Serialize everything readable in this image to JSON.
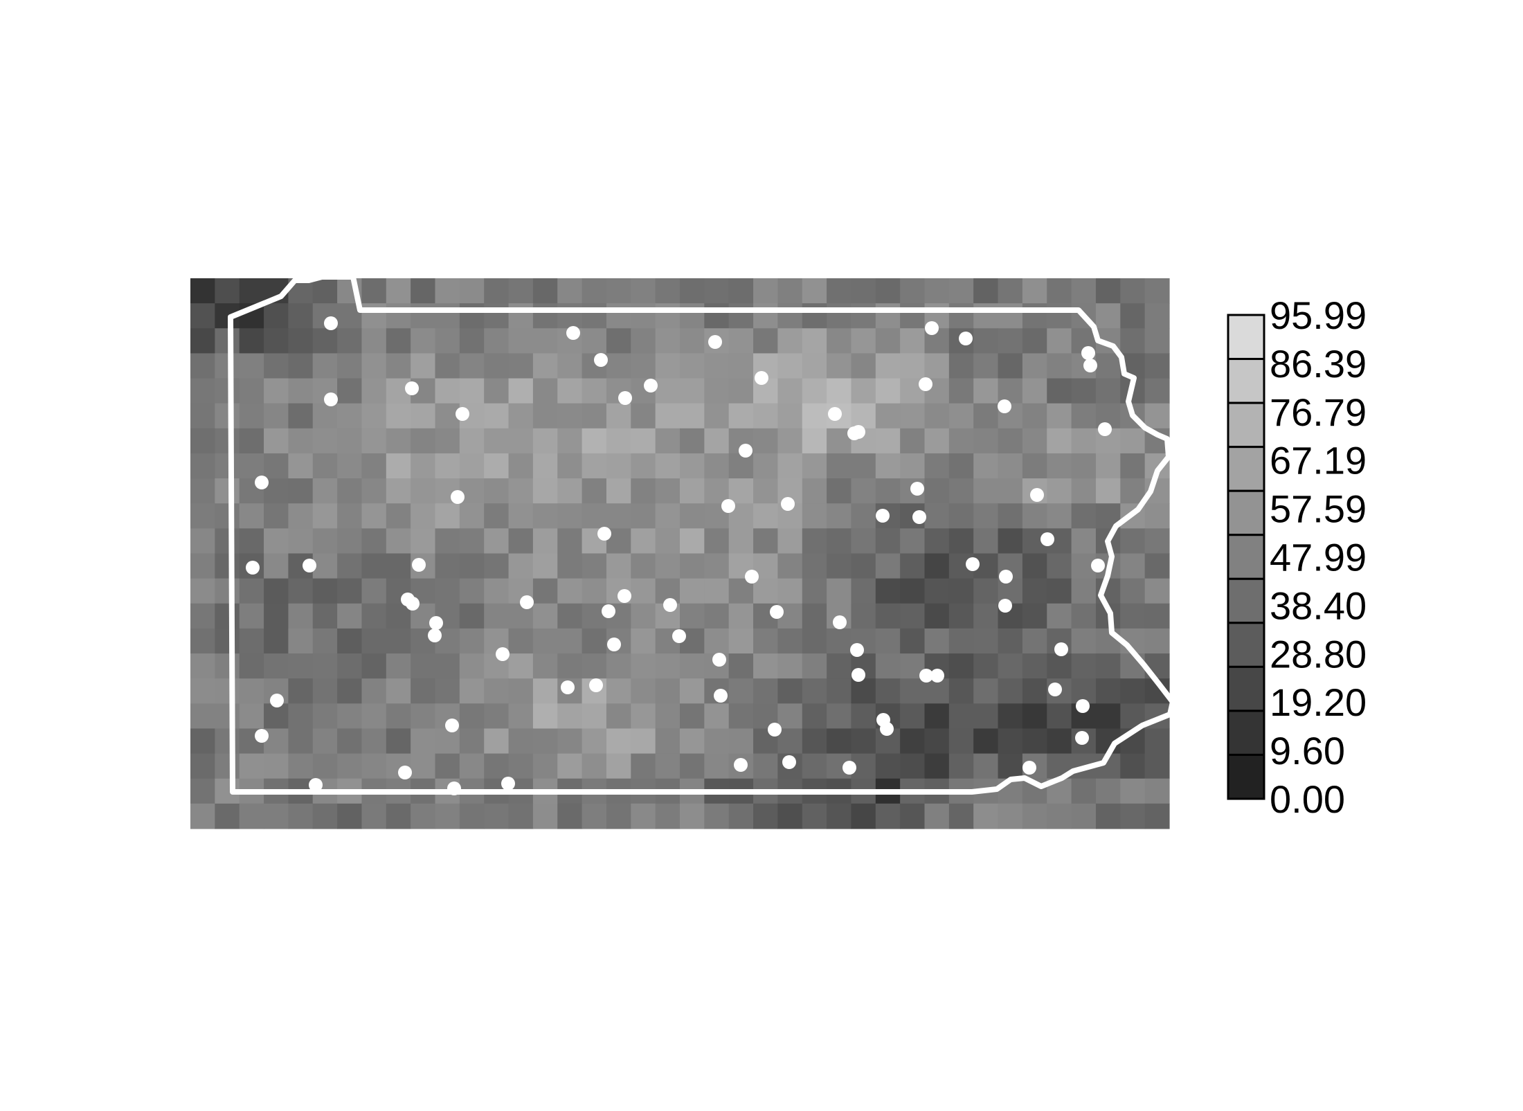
{
  "chart_data": {
    "type": "heatmap",
    "title": "",
    "xlabel": "",
    "ylabel": "",
    "legend": {
      "placement": "right",
      "ticks": [
        "95.99",
        "86.39",
        "76.79",
        "67.19",
        "57.59",
        "47.99",
        "38.40",
        "28.80",
        "19.20",
        "9.60",
        "0.00"
      ],
      "range": [
        0.0,
        95.99
      ],
      "colors": [
        "#dadada",
        "#c6c6c6",
        "#b3b3b3",
        "#a3a3a3",
        "#939393",
        "#818181",
        "#6e6e6e",
        "#5c5c5c",
        "#474747",
        "#343434",
        "#222222"
      ]
    },
    "grid": {
      "rows": 22,
      "cols": 40
    },
    "overlay": {
      "state_boundary": "white outline",
      "points": "white dots (monitoring sites)"
    },
    "colors": {
      "background": "#ffffff",
      "outline": "#ffffff",
      "points": "#ffffff"
    }
  }
}
